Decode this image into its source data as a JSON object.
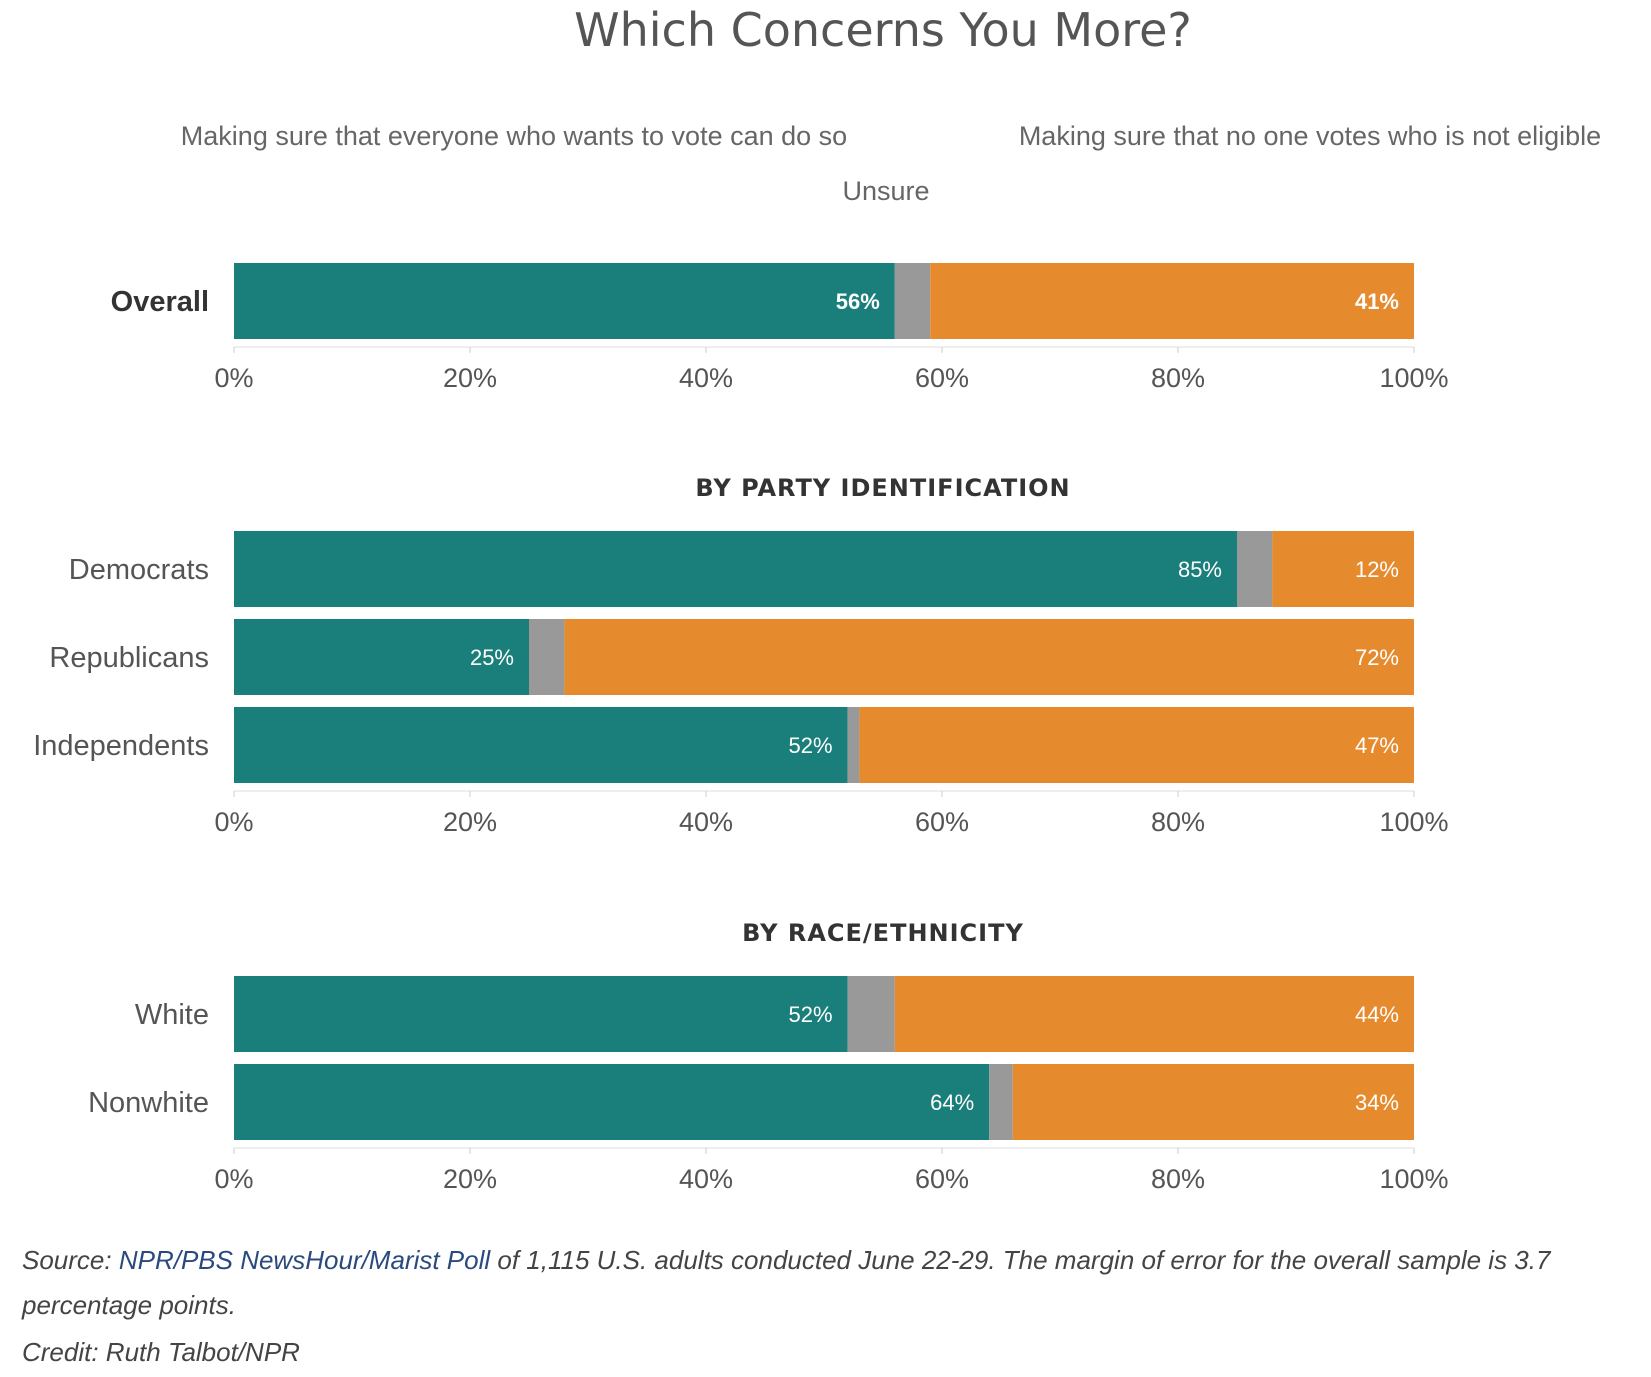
{
  "title": "Which Concerns You More?",
  "legend": {
    "yes": "Making sure that everyone who wants to vote can do so",
    "no": "Making sure that no one votes who is not eligible",
    "unsure": "Unsure"
  },
  "colors": {
    "yes": "#1a7f7a",
    "unsure": "#999999",
    "no": "#e68a2e"
  },
  "chart_data": {
    "type": "bar",
    "orientation": "horizontal",
    "stacked": true,
    "xlim": [
      0,
      100
    ],
    "ticks": [
      "0%",
      "20%",
      "40%",
      "60%",
      "80%",
      "100%"
    ],
    "series": [
      {
        "name": "Making sure that everyone who wants to vote can do so"
      },
      {
        "name": "Unsure"
      },
      {
        "name": "Making sure that no one votes who is not eligible"
      }
    ],
    "groups": [
      {
        "heading": "",
        "rows": [
          {
            "label": "Overall",
            "yes": 56,
            "unsure": 3,
            "no": 41,
            "yes_label": "56%",
            "no_label": "41%"
          }
        ]
      },
      {
        "heading": "BY PARTY IDENTIFICATION",
        "rows": [
          {
            "label": "Democrats",
            "yes": 85,
            "unsure": 3,
            "no": 12,
            "yes_label": "85%",
            "no_label": "12%"
          },
          {
            "label": "Republicans",
            "yes": 25,
            "unsure": 3,
            "no": 72,
            "yes_label": "25%",
            "no_label": "72%"
          },
          {
            "label": "Independents",
            "yes": 52,
            "unsure": 1,
            "no": 47,
            "yes_label": "52%",
            "no_label": "47%"
          }
        ]
      },
      {
        "heading": "BY RACE/ETHNICITY",
        "rows": [
          {
            "label": "White",
            "yes": 52,
            "unsure": 4,
            "no": 44,
            "yes_label": "52%",
            "no_label": "44%"
          },
          {
            "label": "Nonwhite",
            "yes": 64,
            "unsure": 2,
            "no": 34,
            "yes_label": "64%",
            "no_label": "34%"
          }
        ]
      }
    ]
  },
  "footer": {
    "source_prefix": "Source: ",
    "source_link": "NPR/PBS NewsHour/Marist Poll",
    "source_rest": " of 1,115 U.S. adults conducted June 22-29. The margin of error for the overall sample is 3.7",
    "source_line2": "percentage points.",
    "credit": "Credit: Ruth Talbot/NPR"
  }
}
